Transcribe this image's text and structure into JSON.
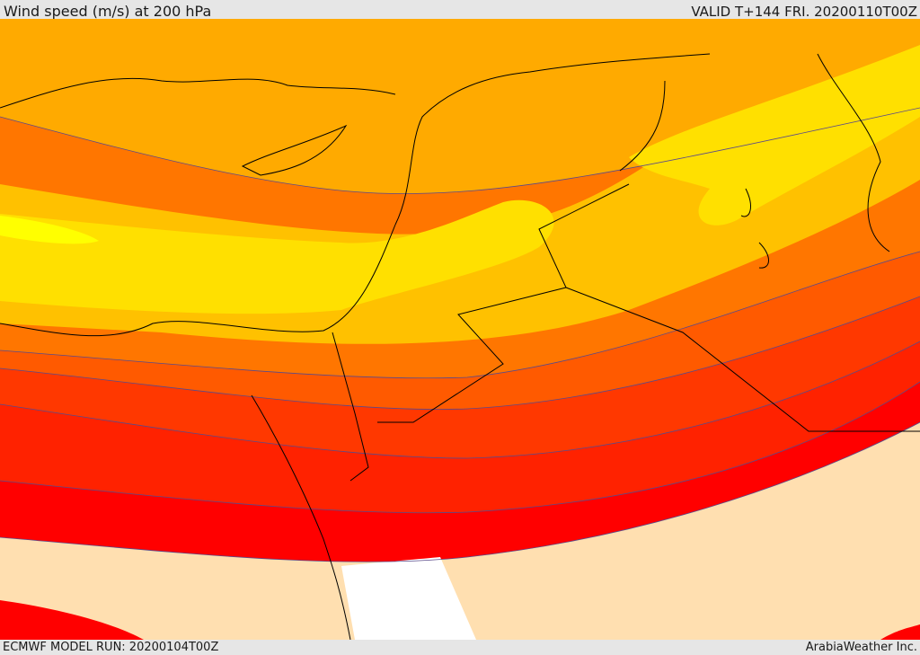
{
  "header": {
    "title": "Wind speed (m/s) at 200 hPa",
    "valid": "VALID T+144 FRI. 20200110T00Z"
  },
  "footer": {
    "model_run": "ECMWF MODEL RUN: 20200104T00Z",
    "credit": "ArabiaWeather Inc."
  },
  "colors": {
    "band_1": "#ffdfb0",
    "band_2": "#ff0000",
    "band_3": "#ff2200",
    "band_4": "#ff3800",
    "band_5": "#ff5a00",
    "band_6": "#ff7600",
    "band_7": "#ff9400",
    "band_8": "#ffaa00",
    "band_9": "#ffc100",
    "band_10": "#ffe000",
    "band_11": "#ffff00",
    "sea_gap": "#ffffff",
    "coastline": "#000000",
    "contour_line": "#5a4a8a"
  }
}
